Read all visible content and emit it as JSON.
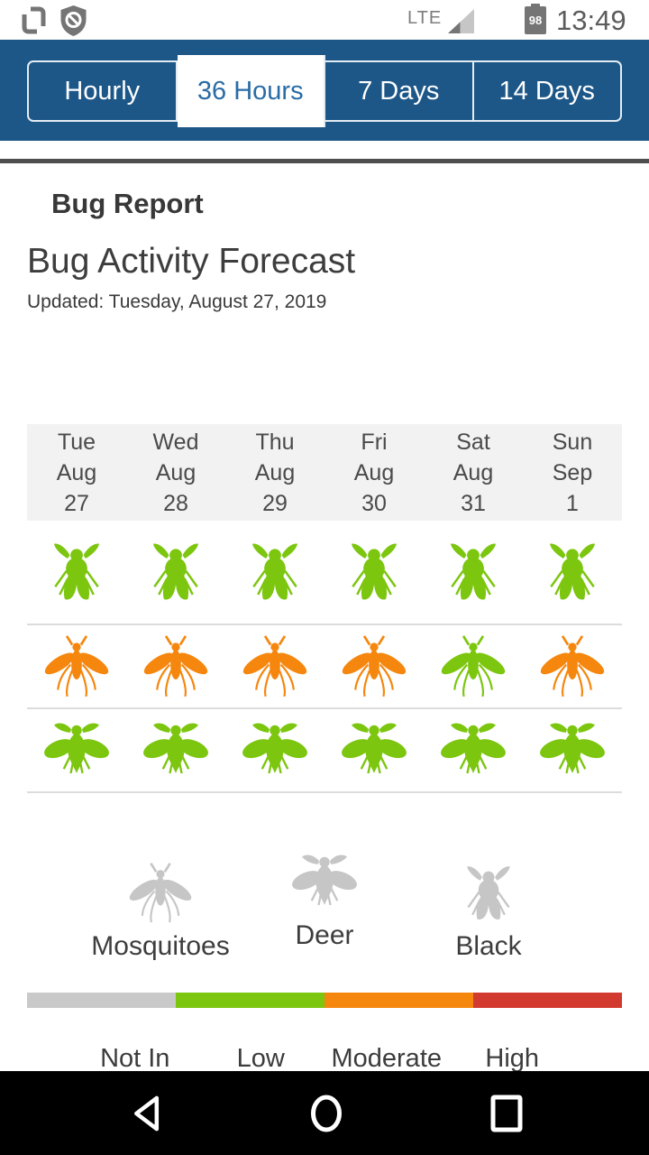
{
  "status_bar": {
    "time": "13:49",
    "network": "LTE",
    "battery_percent": "98",
    "left_icons": [
      "screenshot-icon",
      "shield-block-icon"
    ]
  },
  "tabs": {
    "items": [
      {
        "label": "Hourly",
        "selected": false
      },
      {
        "label": "36 Hours",
        "selected": true
      },
      {
        "label": "7 Days",
        "selected": false
      },
      {
        "label": "14 Days",
        "selected": false
      }
    ]
  },
  "page": {
    "section_title": "Bug Report",
    "title": "Bug Activity Forecast",
    "updated": "Updated: Tuesday, August 27, 2019"
  },
  "forecast": {
    "days": [
      {
        "dow": "Tue",
        "month": "Aug",
        "date": "27"
      },
      {
        "dow": "Wed",
        "month": "Aug",
        "date": "28"
      },
      {
        "dow": "Thu",
        "month": "Aug",
        "date": "29"
      },
      {
        "dow": "Fri",
        "month": "Aug",
        "date": "30"
      },
      {
        "dow": "Sat",
        "month": "Aug",
        "date": "31"
      },
      {
        "dow": "Sun",
        "month": "Sep",
        "date": "1"
      }
    ],
    "rows": [
      {
        "bug": "black-fly",
        "levels": [
          "low",
          "low",
          "low",
          "low",
          "low",
          "low"
        ]
      },
      {
        "bug": "mosquito",
        "levels": [
          "moderate",
          "moderate",
          "moderate",
          "moderate",
          "low",
          "moderate"
        ]
      },
      {
        "bug": "deer-fly",
        "levels": [
          "low",
          "low",
          "low",
          "low",
          "low",
          "low"
        ]
      }
    ]
  },
  "legend": {
    "icon_color": "#c6c6c6",
    "items": [
      {
        "bug": "mosquito",
        "label": "Mosquitoes"
      },
      {
        "bug": "deer-fly",
        "label": "Deer"
      },
      {
        "bug": "black-fly",
        "label": "Black"
      }
    ]
  },
  "scale": {
    "segments": [
      {
        "level": "not_in_season",
        "label": "Not In",
        "color": "#c9c9c9"
      },
      {
        "level": "low",
        "label": "Low",
        "color": "#7cc60f"
      },
      {
        "level": "moderate",
        "label": "Moderate",
        "color": "#f5870f"
      },
      {
        "level": "high",
        "label": "High",
        "color": "#d33a2f"
      }
    ]
  },
  "colors": {
    "tab_bar_blue": "#1d5788",
    "selected_tab_text": "#2a6ca5",
    "status_icon_gray": "#757575"
  },
  "nav_bar": {
    "buttons": [
      "back",
      "home",
      "recents"
    ]
  }
}
